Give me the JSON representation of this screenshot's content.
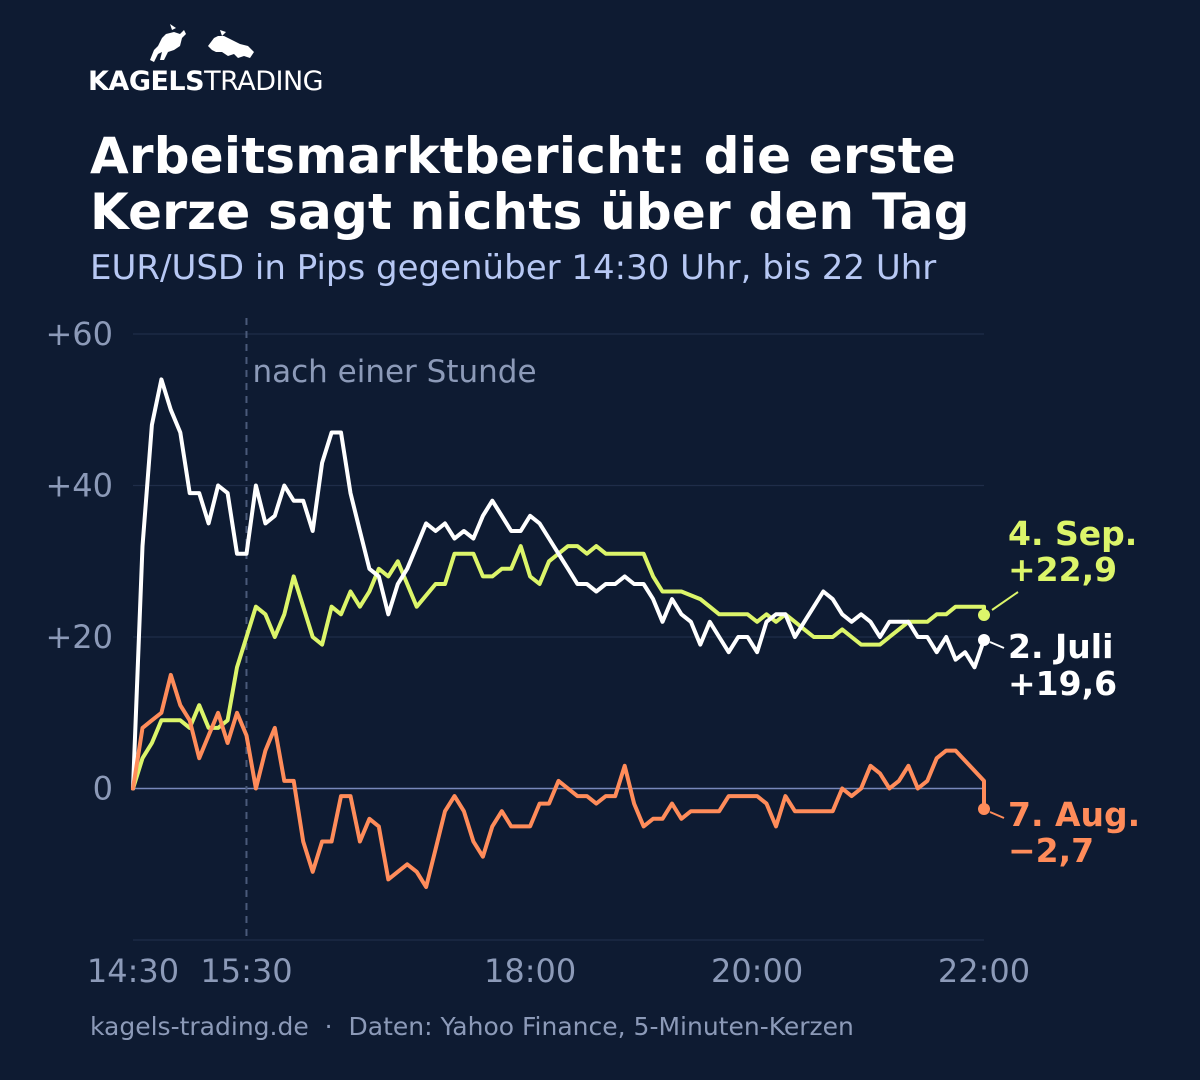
{
  "brand": {
    "name_bold": "KAGELS",
    "name_light": "TRADING",
    "logo_icons": [
      "bull-icon",
      "bear-icon"
    ]
  },
  "title": "Arbeitsmarktbericht: die erste\nKerze sagt nichts über den Tag",
  "subtitle": "EUR/USD in Pips gegenüber 14:30 Uhr, bis 22 Uhr",
  "footer": {
    "site": "kagels-trading.de",
    "separator": "·",
    "source": "Daten: Yahoo Finance, 5-Minuten-Kerzen"
  },
  "colors": {
    "background": "#0e1b32",
    "grid": "#1f2d49",
    "zero_line": "#7888bb",
    "tick_text": "#8c9ab8",
    "sep": "#dcf56a",
    "juli": "#ffffff",
    "aug": "#ff8c5a"
  },
  "chart_data": {
    "type": "line",
    "x_ticks": [
      "14:30",
      "15:30",
      "18:00",
      "20:00",
      "22:00"
    ],
    "y_ticks": [
      "+60",
      "+40",
      "+20",
      "0"
    ],
    "ylim": [
      -20,
      60
    ],
    "xlim": [
      "14:30",
      "22:00"
    ],
    "grid": true,
    "vline": {
      "x": "15:30",
      "label": "nach einer Stunde"
    },
    "series": [
      {
        "key": "sep",
        "label_name": "4. Sep.",
        "label_value": "+22,9",
        "color": "#dcf56a",
        "points": [
          [
            "14:30",
            0
          ],
          [
            "14:35",
            4
          ],
          [
            "14:40",
            6
          ],
          [
            "14:45",
            9
          ],
          [
            "14:50",
            9
          ],
          [
            "14:55",
            9
          ],
          [
            "15:00",
            8
          ],
          [
            "15:05",
            11
          ],
          [
            "15:10",
            8
          ],
          [
            "15:15",
            8
          ],
          [
            "15:20",
            9
          ],
          [
            "15:25",
            16
          ],
          [
            "15:30",
            20
          ],
          [
            "15:35",
            24
          ],
          [
            "15:40",
            23
          ],
          [
            "15:45",
            20
          ],
          [
            "15:50",
            23
          ],
          [
            "15:55",
            28
          ],
          [
            "16:00",
            24
          ],
          [
            "16:05",
            20
          ],
          [
            "16:10",
            19
          ],
          [
            "16:15",
            24
          ],
          [
            "16:20",
            23
          ],
          [
            "16:25",
            26
          ],
          [
            "16:30",
            24
          ],
          [
            "16:35",
            26
          ],
          [
            "16:40",
            29
          ],
          [
            "16:45",
            28
          ],
          [
            "16:50",
            30
          ],
          [
            "16:55",
            27
          ],
          [
            "17:00",
            24
          ],
          [
            "17:10",
            27
          ],
          [
            "17:15",
            27
          ],
          [
            "17:20",
            31
          ],
          [
            "17:30",
            31
          ],
          [
            "17:35",
            28
          ],
          [
            "17:40",
            28
          ],
          [
            "17:45",
            29
          ],
          [
            "17:50",
            29
          ],
          [
            "17:55",
            32
          ],
          [
            "18:00",
            28
          ],
          [
            "18:05",
            27
          ],
          [
            "18:10",
            30
          ],
          [
            "18:20",
            32
          ],
          [
            "18:25",
            32
          ],
          [
            "18:30",
            31
          ],
          [
            "18:35",
            32
          ],
          [
            "18:40",
            31
          ],
          [
            "19:00",
            31
          ],
          [
            "19:05",
            28
          ],
          [
            "19:10",
            26
          ],
          [
            "19:20",
            26
          ],
          [
            "19:30",
            25
          ],
          [
            "19:35",
            24
          ],
          [
            "19:40",
            23
          ],
          [
            "19:55",
            23
          ],
          [
            "20:00",
            22
          ],
          [
            "20:05",
            23
          ],
          [
            "20:10",
            22
          ],
          [
            "20:15",
            23
          ],
          [
            "20:20",
            22
          ],
          [
            "20:25",
            21
          ],
          [
            "20:30",
            20
          ],
          [
            "20:40",
            20
          ],
          [
            "20:45",
            21
          ],
          [
            "20:50",
            20
          ],
          [
            "20:55",
            19
          ],
          [
            "21:05",
            19
          ],
          [
            "21:10",
            20
          ],
          [
            "21:15",
            21
          ],
          [
            "21:20",
            22
          ],
          [
            "21:30",
            22
          ],
          [
            "21:35",
            23
          ],
          [
            "21:40",
            23
          ],
          [
            "21:45",
            24
          ],
          [
            "22:00",
            24
          ],
          [
            "22:00",
            22.9
          ]
        ]
      },
      {
        "key": "juli",
        "label_name": "2. Juli",
        "label_value": "+19,6",
        "color": "#ffffff",
        "points": [
          [
            "14:30",
            0
          ],
          [
            "14:35",
            32
          ],
          [
            "14:40",
            48
          ],
          [
            "14:45",
            54
          ],
          [
            "14:50",
            50
          ],
          [
            "14:55",
            47
          ],
          [
            "15:00",
            39
          ],
          [
            "15:05",
            39
          ],
          [
            "15:10",
            35
          ],
          [
            "15:15",
            40
          ],
          [
            "15:20",
            39
          ],
          [
            "15:25",
            31
          ],
          [
            "15:30",
            31
          ],
          [
            "15:35",
            40
          ],
          [
            "15:40",
            35
          ],
          [
            "15:45",
            36
          ],
          [
            "15:50",
            40
          ],
          [
            "15:55",
            38
          ],
          [
            "16:00",
            38
          ],
          [
            "16:05",
            34
          ],
          [
            "16:10",
            43
          ],
          [
            "16:15",
            47
          ],
          [
            "16:20",
            47
          ],
          [
            "16:25",
            39
          ],
          [
            "16:30",
            34
          ],
          [
            "16:35",
            29
          ],
          [
            "16:40",
            28
          ],
          [
            "16:45",
            23
          ],
          [
            "16:50",
            27
          ],
          [
            "16:55",
            29
          ],
          [
            "17:00",
            32
          ],
          [
            "17:05",
            35
          ],
          [
            "17:10",
            34
          ],
          [
            "17:15",
            35
          ],
          [
            "17:20",
            33
          ],
          [
            "17:25",
            34
          ],
          [
            "17:30",
            33
          ],
          [
            "17:35",
            36
          ],
          [
            "17:40",
            38
          ],
          [
            "17:45",
            36
          ],
          [
            "17:50",
            34
          ],
          [
            "17:55",
            34
          ],
          [
            "18:00",
            36
          ],
          [
            "18:05",
            35
          ],
          [
            "18:10",
            33
          ],
          [
            "18:15",
            31
          ],
          [
            "18:20",
            29
          ],
          [
            "18:25",
            27
          ],
          [
            "18:30",
            27
          ],
          [
            "18:35",
            26
          ],
          [
            "18:40",
            27
          ],
          [
            "18:45",
            27
          ],
          [
            "18:50",
            28
          ],
          [
            "18:55",
            27
          ],
          [
            "19:00",
            27
          ],
          [
            "19:05",
            25
          ],
          [
            "19:10",
            22
          ],
          [
            "19:15",
            25
          ],
          [
            "19:20",
            23
          ],
          [
            "19:25",
            22
          ],
          [
            "19:30",
            19
          ],
          [
            "19:35",
            22
          ],
          [
            "19:40",
            20
          ],
          [
            "19:45",
            18
          ],
          [
            "19:50",
            20
          ],
          [
            "19:55",
            20
          ],
          [
            "20:00",
            18
          ],
          [
            "20:05",
            22
          ],
          [
            "20:10",
            23
          ],
          [
            "20:15",
            23
          ],
          [
            "20:20",
            20
          ],
          [
            "20:25",
            22
          ],
          [
            "20:30",
            24
          ],
          [
            "20:35",
            26
          ],
          [
            "20:40",
            25
          ],
          [
            "20:45",
            23
          ],
          [
            "20:50",
            22
          ],
          [
            "20:55",
            23
          ],
          [
            "21:00",
            22
          ],
          [
            "21:05",
            20
          ],
          [
            "21:10",
            22
          ],
          [
            "21:15",
            22
          ],
          [
            "21:20",
            22
          ],
          [
            "21:25",
            20
          ],
          [
            "21:30",
            20
          ],
          [
            "21:35",
            18
          ],
          [
            "21:40",
            20
          ],
          [
            "21:45",
            17
          ],
          [
            "21:50",
            18
          ],
          [
            "21:55",
            16
          ],
          [
            "22:00",
            19.6
          ]
        ]
      },
      {
        "key": "aug",
        "label_name": "7. Aug.",
        "label_value": "−2,7",
        "color": "#ff8c5a",
        "points": [
          [
            "14:30",
            0
          ],
          [
            "14:35",
            8
          ],
          [
            "14:40",
            9
          ],
          [
            "14:45",
            10
          ],
          [
            "14:50",
            15
          ],
          [
            "14:55",
            11
          ],
          [
            "15:00",
            9
          ],
          [
            "15:05",
            4
          ],
          [
            "15:10",
            7
          ],
          [
            "15:15",
            10
          ],
          [
            "15:20",
            6
          ],
          [
            "15:25",
            10
          ],
          [
            "15:30",
            7
          ],
          [
            "15:35",
            0
          ],
          [
            "15:40",
            5
          ],
          [
            "15:45",
            8
          ],
          [
            "15:50",
            1
          ],
          [
            "15:55",
            1
          ],
          [
            "16:00",
            -7
          ],
          [
            "16:05",
            -11
          ],
          [
            "16:10",
            -7
          ],
          [
            "16:15",
            -7
          ],
          [
            "16:20",
            -1
          ],
          [
            "16:25",
            -1
          ],
          [
            "16:30",
            -7
          ],
          [
            "16:35",
            -4
          ],
          [
            "16:40",
            -5
          ],
          [
            "16:45",
            -12
          ],
          [
            "16:50",
            -11
          ],
          [
            "16:55",
            -10
          ],
          [
            "17:00",
            -11
          ],
          [
            "17:05",
            -13
          ],
          [
            "17:10",
            -8
          ],
          [
            "17:15",
            -3
          ],
          [
            "17:20",
            -1
          ],
          [
            "17:25",
            -3
          ],
          [
            "17:30",
            -7
          ],
          [
            "17:35",
            -9
          ],
          [
            "17:40",
            -5
          ],
          [
            "17:45",
            -3
          ],
          [
            "17:50",
            -5
          ],
          [
            "18:00",
            -5
          ],
          [
            "18:05",
            -2
          ],
          [
            "18:10",
            -2
          ],
          [
            "18:15",
            1
          ],
          [
            "18:20",
            0
          ],
          [
            "18:25",
            -1
          ],
          [
            "18:30",
            -1
          ],
          [
            "18:35",
            -2
          ],
          [
            "18:40",
            -1
          ],
          [
            "18:45",
            -1
          ],
          [
            "18:50",
            3
          ],
          [
            "18:55",
            -2
          ],
          [
            "19:00",
            -5
          ],
          [
            "19:05",
            -4
          ],
          [
            "19:10",
            -4
          ],
          [
            "19:15",
            -2
          ],
          [
            "19:20",
            -4
          ],
          [
            "19:25",
            -3
          ],
          [
            "19:40",
            -3
          ],
          [
            "19:45",
            -1
          ],
          [
            "20:00",
            -1
          ],
          [
            "20:05",
            -2
          ],
          [
            "20:10",
            -5
          ],
          [
            "20:15",
            -1
          ],
          [
            "20:20",
            -3
          ],
          [
            "20:40",
            -3
          ],
          [
            "20:45",
            0
          ],
          [
            "20:50",
            -1
          ],
          [
            "20:55",
            0
          ],
          [
            "21:00",
            3
          ],
          [
            "21:05",
            2
          ],
          [
            "21:10",
            0
          ],
          [
            "21:15",
            1
          ],
          [
            "21:20",
            3
          ],
          [
            "21:25",
            0
          ],
          [
            "21:30",
            1
          ],
          [
            "21:35",
            4
          ],
          [
            "21:40",
            5
          ],
          [
            "21:45",
            5
          ],
          [
            "22:00",
            1
          ],
          [
            "22:00",
            -2.7
          ]
        ]
      }
    ]
  }
}
